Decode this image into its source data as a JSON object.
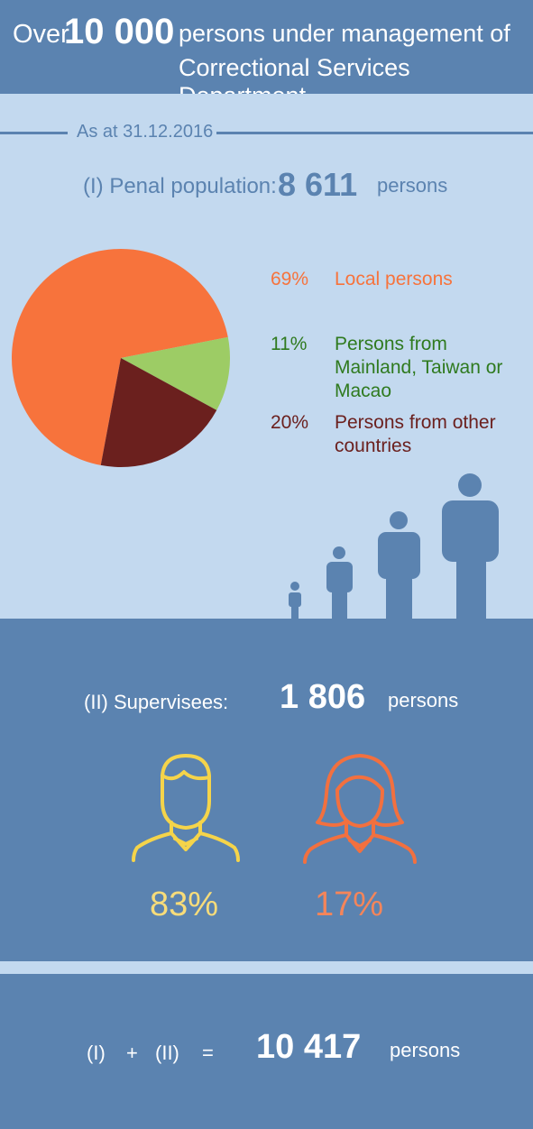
{
  "header": {
    "over": "Over",
    "big_number": "10 000",
    "line1_rest": "persons under management of",
    "line2": "Correctional Services Department"
  },
  "date": "As at 31.12.2016",
  "penal": {
    "label": "(I)   Penal population:",
    "value": "8 611",
    "unit": "persons"
  },
  "chart_data": {
    "type": "pie",
    "title": "",
    "slices": [
      {
        "pct_label": "69%",
        "label": "Local persons",
        "value": 69,
        "color": "#f7733c"
      },
      {
        "pct_label": "11%",
        "label": "Persons from Mainland, Taiwan or Macao",
        "value": 11,
        "color": "#9dcc65"
      },
      {
        "pct_label": "20%",
        "label": "Persons from other countries",
        "value": 20,
        "color": "#6b201e"
      }
    ],
    "label_colors": [
      "#f7733c",
      "#2f7a1f",
      "#6b201e"
    ]
  },
  "supervisees": {
    "label": "(II)   Supervisees:",
    "value": "1 806",
    "unit": "persons",
    "male_pct": "83%",
    "female_pct": "17%",
    "male_icon": "man-outline-icon",
    "female_icon": "woman-outline-icon",
    "male_color": "#f5d44a",
    "female_color": "#f2703f",
    "male_text_color": "#f7dc7a",
    "female_text_color": "#f4855a"
  },
  "total": {
    "part1": "(I)",
    "plus": "+",
    "part2": "(II)",
    "equals": "=",
    "value": "10 417",
    "unit": "persons"
  },
  "decor": {
    "people_icon": "growing-people-icon"
  },
  "colors": {
    "dark_blue": "#5b83b0",
    "light_blue": "#c3d9ef",
    "white": "#ffffff"
  }
}
